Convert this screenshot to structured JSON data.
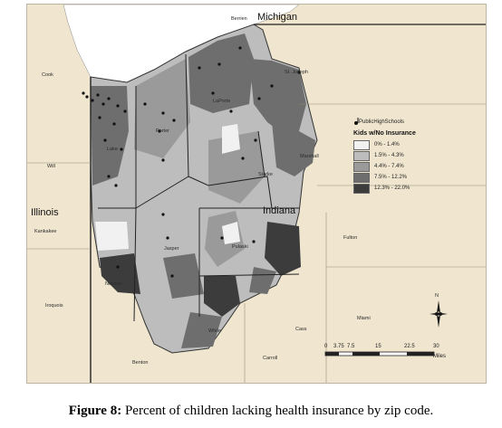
{
  "map": {
    "state_labels": {
      "michigan": "Michigan",
      "illinois": "Illinois",
      "indiana": "Indiana"
    },
    "county_labels": {
      "berrien": "Berrien",
      "cook": "Cook",
      "will": "Will",
      "kankakee": "Kankakee",
      "iroquois": "Iroquois",
      "st_joseph": "St. Joseph",
      "laporte": "LaPorte",
      "porter": "Porter",
      "lake": "Lake",
      "marshall": "Marshall",
      "starke": "Starke",
      "fulton": "Fulton",
      "pulaski": "Pulaski",
      "jasper": "Jasper",
      "newton": "Newton",
      "white": "White",
      "cass": "Cass",
      "miami": "Miami",
      "benton": "Benton",
      "carroll": "Carroll"
    },
    "legend": {
      "schools_label": "PublicHighSchools",
      "title": "Kids w/No Insurance",
      "classes": [
        {
          "label": "0% - 1.4%",
          "color": "#f1f1f1"
        },
        {
          "label": "1.5% - 4.3%",
          "color": "#bdbdbd"
        },
        {
          "label": "4.4% - 7.4%",
          "color": "#9a9a9a"
        },
        {
          "label": "7.5% - 12.2%",
          "color": "#6e6e6e"
        },
        {
          "label": "12.3% - 22.0%",
          "color": "#3c3c3c"
        }
      ]
    },
    "scale_bar": {
      "ticks": [
        "0",
        "3.75",
        "7.5",
        "15",
        "22.5",
        "30"
      ],
      "unit": "Miles"
    },
    "north_label": "N",
    "colors": {
      "lake": "#ffffff",
      "background": "#f0e6cf",
      "county_line": "#222222"
    }
  },
  "caption": {
    "prefix": "Figure 8:",
    "text": " Percent of children lacking health insurance by zip code."
  }
}
